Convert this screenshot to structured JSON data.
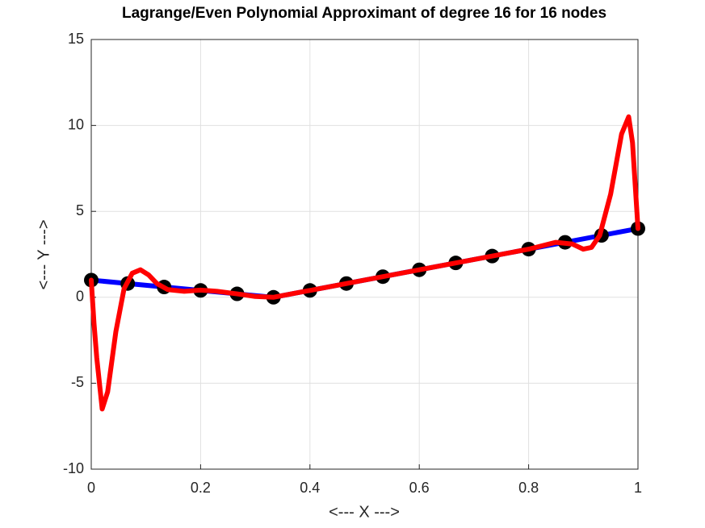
{
  "chart_data": {
    "type": "line",
    "title": "Lagrange/Even Polynomial Approximant of degree 16 for 16 nodes",
    "xlabel": "<--- X --->",
    "ylabel": "<--- Y --->",
    "xlim": [
      0,
      1
    ],
    "ylim": [
      -10,
      15
    ],
    "xticks": [
      0,
      0.2,
      0.4,
      0.6,
      0.8,
      1
    ],
    "yticks": [
      -10,
      -5,
      0,
      5,
      10,
      15
    ],
    "grid": true,
    "series": [
      {
        "color": "#0000ff",
        "marker": false,
        "x": [
          0,
          0.3333,
          1
        ],
        "values": [
          1,
          0,
          4
        ]
      },
      {
        "color": "#000000",
        "marker": true,
        "x": [
          0,
          0.0667,
          0.1333,
          0.2,
          0.2667,
          0.3333,
          0.4,
          0.4667,
          0.5333,
          0.6,
          0.6667,
          0.7333,
          0.8,
          0.8667,
          0.9333,
          1
        ],
        "values": [
          1,
          0.8,
          0.6,
          0.4,
          0.2,
          0,
          0.4,
          0.8,
          1.2,
          1.6,
          2,
          2.4,
          2.8,
          3.2,
          3.6,
          4
        ]
      },
      {
        "color": "#ff0000",
        "marker": false,
        "x": [
          0,
          0.005,
          0.01,
          0.02,
          0.03,
          0.045,
          0.06,
          0.075,
          0.09,
          0.105,
          0.12,
          0.14,
          0.17,
          0.2,
          0.23,
          0.267,
          0.3,
          0.333,
          0.4,
          0.5,
          0.6,
          0.7,
          0.8,
          0.85,
          0.88,
          0.9,
          0.915,
          0.93,
          0.95,
          0.97,
          0.983,
          0.99,
          1
        ],
        "values": [
          1,
          -1.5,
          -3.5,
          -6.5,
          -5.5,
          -2,
          0.5,
          1.4,
          1.6,
          1.3,
          0.8,
          0.45,
          0.35,
          0.42,
          0.35,
          0.2,
          0.05,
          0,
          0.4,
          1,
          1.6,
          2.2,
          2.8,
          3.2,
          3.1,
          2.8,
          2.9,
          3.6,
          6,
          9.5,
          10.5,
          9,
          4
        ]
      }
    ]
  }
}
